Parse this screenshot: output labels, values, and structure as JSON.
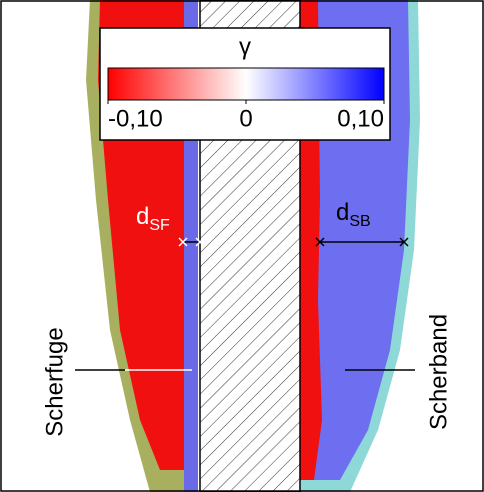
{
  "colorbar": {
    "label": "γ",
    "range": [
      -0.1,
      0.1
    ],
    "colors": [
      "#ff0000",
      "#ffffff",
      "#0000ff"
    ],
    "ticks": [
      {
        "value": -0.1,
        "label": "-0,10"
      },
      {
        "value": 0,
        "label": "0"
      },
      {
        "value": 0.1,
        "label": "0,10"
      }
    ]
  },
  "annotations": {
    "d_sf": {
      "symbol": "d",
      "subscript": "SF"
    },
    "d_sb": {
      "symbol": "d",
      "subscript": "SB"
    },
    "left_label": "Scherfuge",
    "right_label": "Scherband"
  }
}
